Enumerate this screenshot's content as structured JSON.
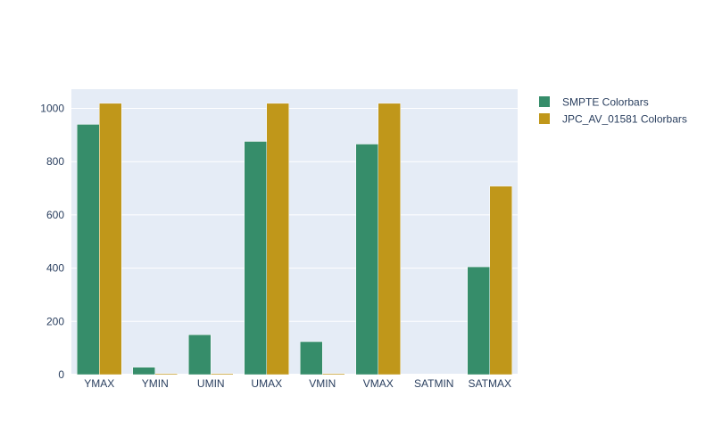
{
  "chart_data": {
    "type": "bar",
    "title": "",
    "xlabel": "",
    "ylabel": "",
    "categories": [
      "YMAX",
      "YMIN",
      "UMIN",
      "UMAX",
      "VMIN",
      "VMAX",
      "SATMIN",
      "SATMAX"
    ],
    "series": [
      {
        "name": "SMPTE Colorbars",
        "color": "#368d6a",
        "values": [
          940,
          28,
          150,
          876,
          124,
          866,
          0,
          405
        ]
      },
      {
        "name": "JPC_AV_01581 Colorbars",
        "color": "#c0971a",
        "values": [
          1019,
          4,
          4,
          1019,
          4,
          1019,
          0,
          708
        ]
      }
    ],
    "ylim": [
      0,
      1072
    ],
    "yticks": [
      0,
      200,
      400,
      600,
      800,
      1000
    ],
    "grid": true,
    "plot_background": "#e5ecf6",
    "legend_position": "top-right"
  }
}
